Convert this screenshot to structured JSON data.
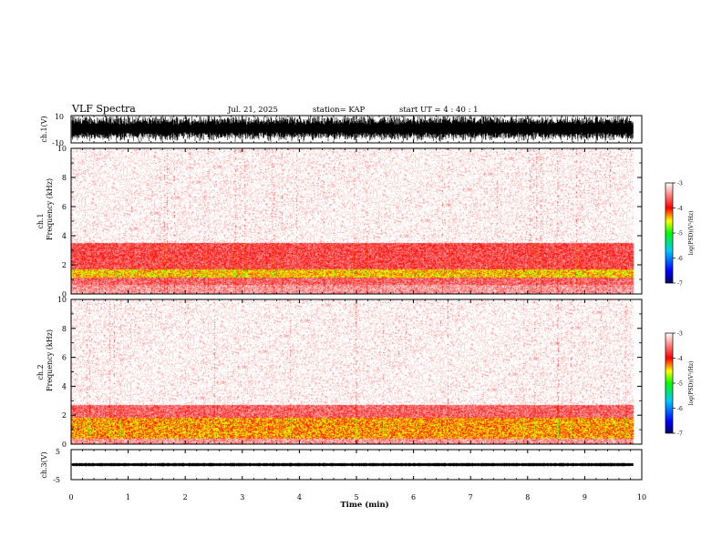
{
  "header": {
    "title": "VLF Spectra",
    "date": "Jul. 21, 2025",
    "station": "station= KAP",
    "start": "start UT =  4 : 40 : 1"
  },
  "chart_data": {
    "type": "heatmap",
    "xlabel": "Time (min)",
    "xlim": [
      0,
      10
    ],
    "xticks": [
      "0",
      "1",
      "2",
      "3",
      "4",
      "5",
      "6",
      "7",
      "8",
      "9",
      "10"
    ],
    "panels": [
      {
        "id": "ch1-waveform",
        "type": "line",
        "ylabel": "ch.1(V)",
        "ylim": [
          -10,
          10
        ],
        "yticks": [
          "10",
          "-10"
        ],
        "description_values": {
          "amplitude_range": [
            -10,
            10
          ],
          "data_end_min": 9.85
        }
      },
      {
        "id": "ch1-spectrogram",
        "type": "heatmap",
        "ylabel": "ch.1\nFrequency (kHz)",
        "ylim": [
          0,
          10
        ],
        "yticks": [
          "0",
          "2",
          "4",
          "6",
          "8",
          "10"
        ],
        "bands": [
          {
            "from_khz": 0.0,
            "to_khz": 0.6,
            "level": -3.4
          },
          {
            "from_khz": 0.6,
            "to_khz": 1.1,
            "level": -3.6
          },
          {
            "from_khz": 1.1,
            "to_khz": 1.7,
            "level": -4.4
          },
          {
            "from_khz": 1.7,
            "to_khz": 3.5,
            "level": -3.7
          },
          {
            "from_khz": 3.5,
            "to_khz": 10.0,
            "level": -3.1
          }
        ],
        "colorbar": {
          "label": "log(PSD)(V²/Hz)",
          "min": -7,
          "max": -3,
          "ticks": [
            "-3",
            "-4",
            "-5",
            "-6",
            "-7"
          ]
        }
      },
      {
        "id": "ch2-spectrogram",
        "type": "heatmap",
        "ylabel": "ch.2\nFrequency (kHz)",
        "ylim": [
          0,
          10
        ],
        "yticks": [
          "0",
          "2",
          "4",
          "6",
          "8",
          "10"
        ],
        "bands": [
          {
            "from_khz": 0.0,
            "to_khz": 0.4,
            "level": -3.4
          },
          {
            "from_khz": 0.4,
            "to_khz": 1.8,
            "level": -4.3
          },
          {
            "from_khz": 1.8,
            "to_khz": 2.7,
            "level": -3.6
          },
          {
            "from_khz": 2.7,
            "to_khz": 10.0,
            "level": -3.1
          }
        ],
        "colorbar": {
          "label": "log(PSD)(V²/Hz)",
          "min": -7,
          "max": -3,
          "ticks": [
            "-3",
            "-4",
            "-5",
            "-6",
            "-7"
          ]
        }
      },
      {
        "id": "ch3-waveform",
        "type": "line",
        "ylabel": "ch.3(V)",
        "ylim": [
          -5,
          5
        ],
        "yticks": [
          "5",
          "-5"
        ],
        "description_values": {
          "amplitude_range": [
            -0.5,
            0.5
          ],
          "data_end_min": 9.85
        }
      }
    ]
  }
}
